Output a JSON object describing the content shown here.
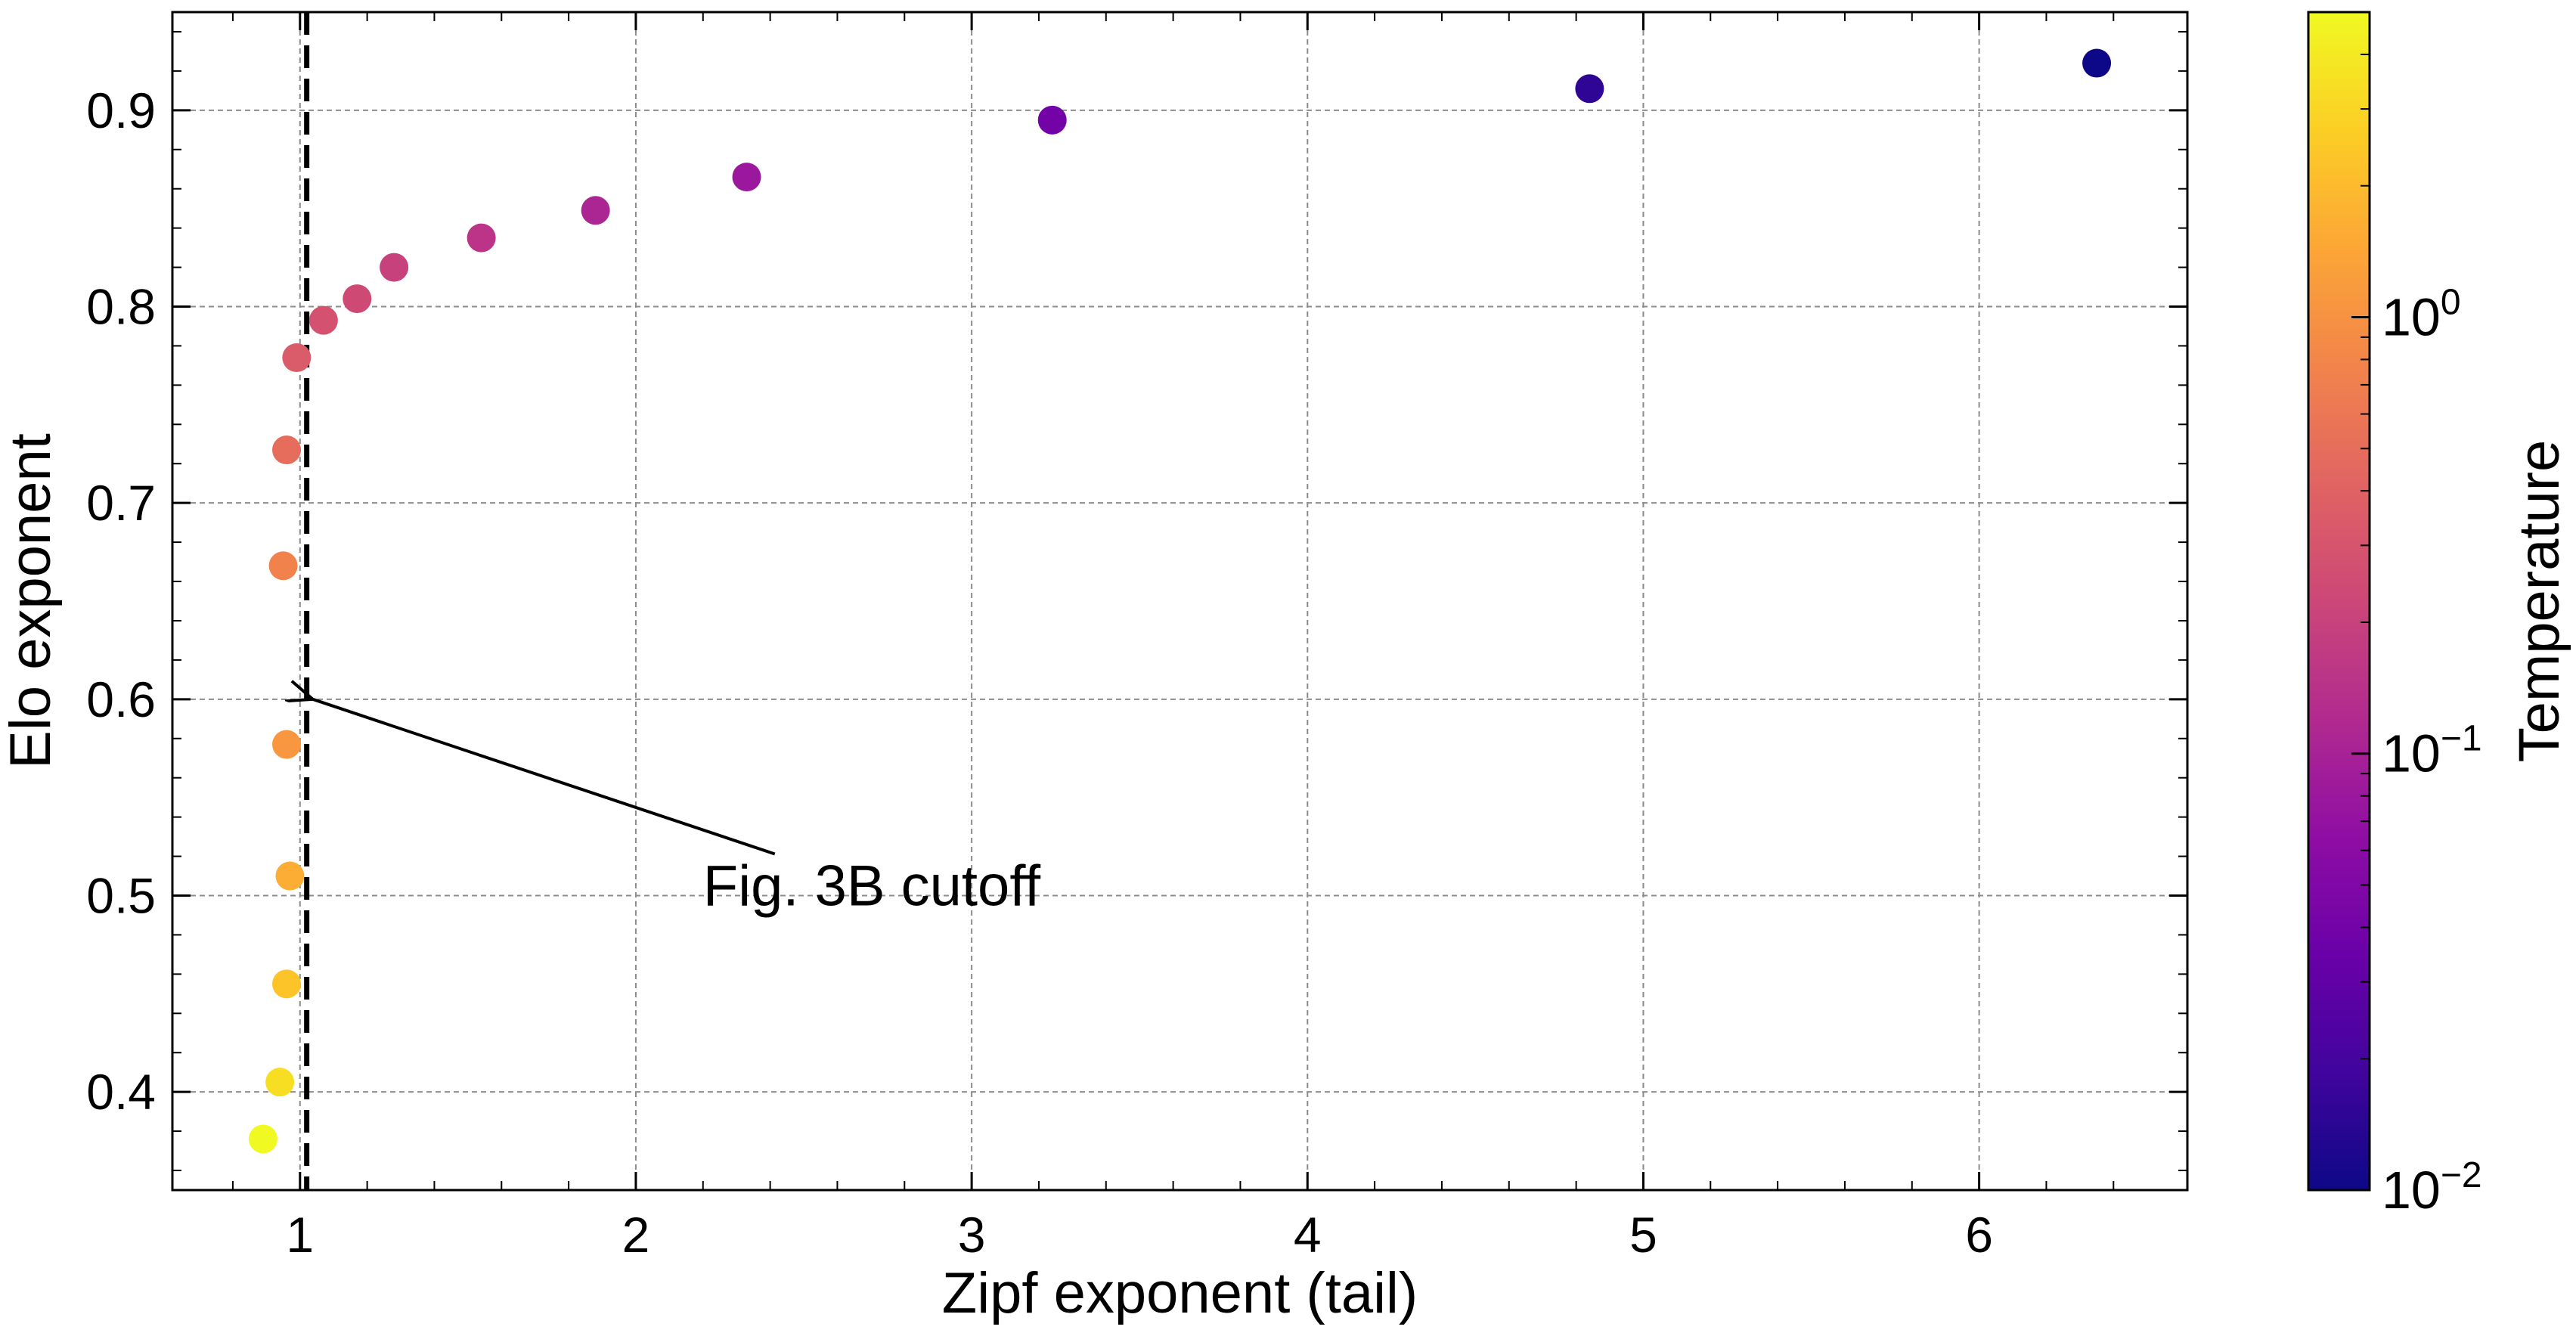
{
  "chart_data": {
    "type": "scatter",
    "title": "",
    "xlabel": "Zipf exponent (tail)",
    "ylabel": "Elo exponent",
    "xlim": [
      0.62,
      6.62
    ],
    "ylim": [
      0.35,
      0.95
    ],
    "xticks": [
      1,
      2,
      3,
      4,
      5,
      6
    ],
    "xtick_labels": [
      "1",
      "2",
      "3",
      "4",
      "5",
      "6"
    ],
    "yticks": [
      0.4,
      0.5,
      0.6,
      0.7,
      0.8,
      0.9
    ],
    "ytick_labels": [
      "0.4",
      "0.5",
      "0.6",
      "0.7",
      "0.8",
      "0.9"
    ],
    "grid": true,
    "colormap": "plasma",
    "points": [
      {
        "x": 6.35,
        "y": 0.924,
        "t": 0.01
      },
      {
        "x": 4.84,
        "y": 0.911,
        "t": 0.015
      },
      {
        "x": 3.24,
        "y": 0.895,
        "t": 0.04
      },
      {
        "x": 2.33,
        "y": 0.866,
        "t": 0.08
      },
      {
        "x": 1.88,
        "y": 0.849,
        "t": 0.11
      },
      {
        "x": 1.54,
        "y": 0.835,
        "t": 0.15
      },
      {
        "x": 1.28,
        "y": 0.82,
        "t": 0.2
      },
      {
        "x": 1.17,
        "y": 0.804,
        "t": 0.24
      },
      {
        "x": 1.07,
        "y": 0.793,
        "t": 0.28
      },
      {
        "x": 0.99,
        "y": 0.774,
        "t": 0.34
      },
      {
        "x": 0.96,
        "y": 0.727,
        "t": 0.5
      },
      {
        "x": 0.95,
        "y": 0.668,
        "t": 0.75
      },
      {
        "x": 0.96,
        "y": 0.577,
        "t": 1.1
      },
      {
        "x": 0.97,
        "y": 0.51,
        "t": 1.6
      },
      {
        "x": 0.96,
        "y": 0.455,
        "t": 2.3
      },
      {
        "x": 0.94,
        "y": 0.405,
        "t": 3.4
      },
      {
        "x": 0.89,
        "y": 0.376,
        "t": 5.0
      }
    ],
    "cutoff_line": {
      "x": 1.02,
      "style": "dashed",
      "color": "#000000"
    },
    "annotation": {
      "text": "Fig. 3B cutoff",
      "x": 2.2,
      "y": 0.505,
      "arrow_to_x": 1.02,
      "arrow_to_y": 0.6
    },
    "colorbar": {
      "label": "Temperature",
      "scale": "log",
      "range": [
        0.01,
        5.0
      ],
      "ticks": [
        {
          "value": 0.01,
          "base": "10",
          "exp": "−2"
        },
        {
          "value": 0.1,
          "base": "10",
          "exp": "−1"
        },
        {
          "value": 1,
          "base": "10",
          "exp": "0"
        }
      ],
      "position": "right"
    }
  }
}
